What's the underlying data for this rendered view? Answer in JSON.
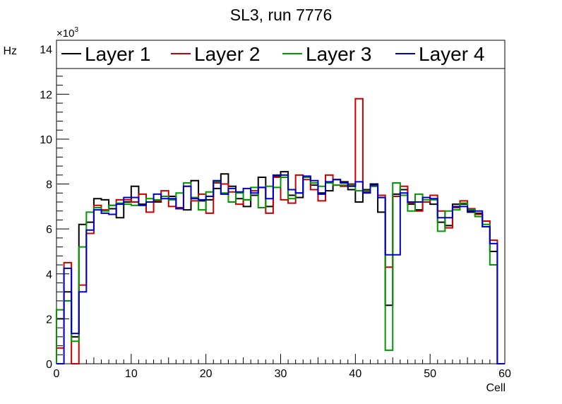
{
  "chart_data": {
    "type": "step-histogram",
    "title": "SL3, run 7776",
    "xlabel": "Cell",
    "ylabel": "Hz",
    "y_exponent_label": "×10",
    "y_exponent_power": "3",
    "xlim": [
      0,
      60
    ],
    "ylim": [
      0,
      14.4
    ],
    "x_ticks": [
      0,
      10,
      20,
      30,
      40,
      50,
      60
    ],
    "x_tick_labels": [
      "0",
      "10",
      "20",
      "30",
      "40",
      "50",
      "60"
    ],
    "y_ticks": [
      0,
      2,
      4,
      6,
      8,
      10,
      12,
      14
    ],
    "y_tick_labels": [
      "0",
      "2",
      "4",
      "6",
      "8",
      "10",
      "12",
      "14"
    ],
    "bins": [
      0,
      1,
      2,
      3,
      4,
      5,
      6,
      7,
      8,
      9,
      10,
      11,
      12,
      13,
      14,
      15,
      16,
      17,
      18,
      19,
      20,
      21,
      22,
      23,
      24,
      25,
      26,
      27,
      28,
      29,
      30,
      31,
      32,
      33,
      34,
      35,
      36,
      37,
      38,
      39,
      40,
      41,
      42,
      43,
      44,
      45,
      46,
      47,
      48,
      49,
      50,
      51,
      52,
      53,
      54,
      55,
      56,
      57,
      58,
      59
    ],
    "series": [
      {
        "name": "Layer 1",
        "color": "#000000",
        "values": [
          2.0,
          3.2,
          1.2,
          6.2,
          6.3,
          7.35,
          7.3,
          6.9,
          6.5,
          7.2,
          7.9,
          7.1,
          7.2,
          7.2,
          7.45,
          7.45,
          6.9,
          6.85,
          8.15,
          7.25,
          7.3,
          7.8,
          8.45,
          7.9,
          7.35,
          7.0,
          7.5,
          8.3,
          7.0,
          8.35,
          8.55,
          7.5,
          7.4,
          8.3,
          7.95,
          7.6,
          7.7,
          8.2,
          8.1,
          7.75,
          7.2,
          7.75,
          8.0,
          6.75,
          2.6,
          7.55,
          7.75,
          7.1,
          6.85,
          7.2,
          7.1,
          6.3,
          6.15,
          7.1,
          7.1,
          6.75,
          6.7,
          6.1,
          5.0,
          0.0
        ]
      },
      {
        "name": "Layer 2",
        "color": "#cc0000",
        "values": [
          0.7,
          4.5,
          0.0,
          3.5,
          5.8,
          7.05,
          6.85,
          7.05,
          7.3,
          7.3,
          7.2,
          7.55,
          6.75,
          7.25,
          7.7,
          7.0,
          6.95,
          7.9,
          7.25,
          7.55,
          6.7,
          8.05,
          8.0,
          7.65,
          7.1,
          7.3,
          7.7,
          7.85,
          6.7,
          8.3,
          7.3,
          7.15,
          8.4,
          8.2,
          7.75,
          7.25,
          8.4,
          7.95,
          7.9,
          8.0,
          11.8,
          7.65,
          7.9,
          7.5,
          4.3,
          7.45,
          7.9,
          7.15,
          6.8,
          7.2,
          7.5,
          6.8,
          6.05,
          6.95,
          7.25,
          6.9,
          6.65,
          6.35,
          5.5,
          0.0
        ]
      },
      {
        "name": "Layer 3",
        "color": "#009900",
        "values": [
          2.4,
          2.8,
          1.0,
          5.2,
          6.75,
          6.95,
          6.8,
          7.05,
          7.15,
          7.1,
          7.05,
          7.05,
          7.35,
          7.3,
          7.45,
          7.3,
          7.6,
          8.05,
          7.4,
          6.85,
          7.65,
          8.1,
          7.6,
          7.2,
          7.6,
          7.3,
          7.85,
          6.95,
          7.9,
          7.85,
          8.3,
          7.35,
          7.6,
          8.3,
          8.05,
          7.9,
          8.05,
          7.95,
          7.95,
          7.95,
          7.7,
          7.7,
          7.9,
          7.4,
          0.6,
          8.05,
          7.5,
          6.8,
          7.55,
          7.3,
          7.3,
          5.9,
          6.8,
          6.85,
          7.15,
          6.85,
          6.55,
          6.2,
          4.4,
          0.0
        ]
      },
      {
        "name": "Layer 4",
        "color": "#0000cc",
        "values": [
          0.0,
          4.25,
          1.35,
          3.2,
          5.95,
          6.85,
          6.7,
          6.65,
          7.1,
          7.4,
          7.4,
          7.05,
          7.2,
          7.55,
          7.35,
          7.35,
          6.9,
          7.9,
          7.35,
          7.3,
          7.45,
          8.15,
          7.55,
          7.8,
          7.65,
          7.8,
          7.6,
          7.85,
          7.35,
          8.4,
          8.4,
          7.75,
          7.6,
          8.35,
          8.15,
          7.55,
          8.1,
          8.2,
          8.05,
          7.9,
          8.1,
          7.6,
          7.95,
          7.4,
          4.85,
          4.85,
          7.6,
          7.2,
          7.2,
          7.4,
          7.35,
          6.5,
          6.5,
          7.0,
          7.0,
          6.8,
          6.8,
          6.1,
          5.35,
          0.0
        ]
      }
    ]
  }
}
